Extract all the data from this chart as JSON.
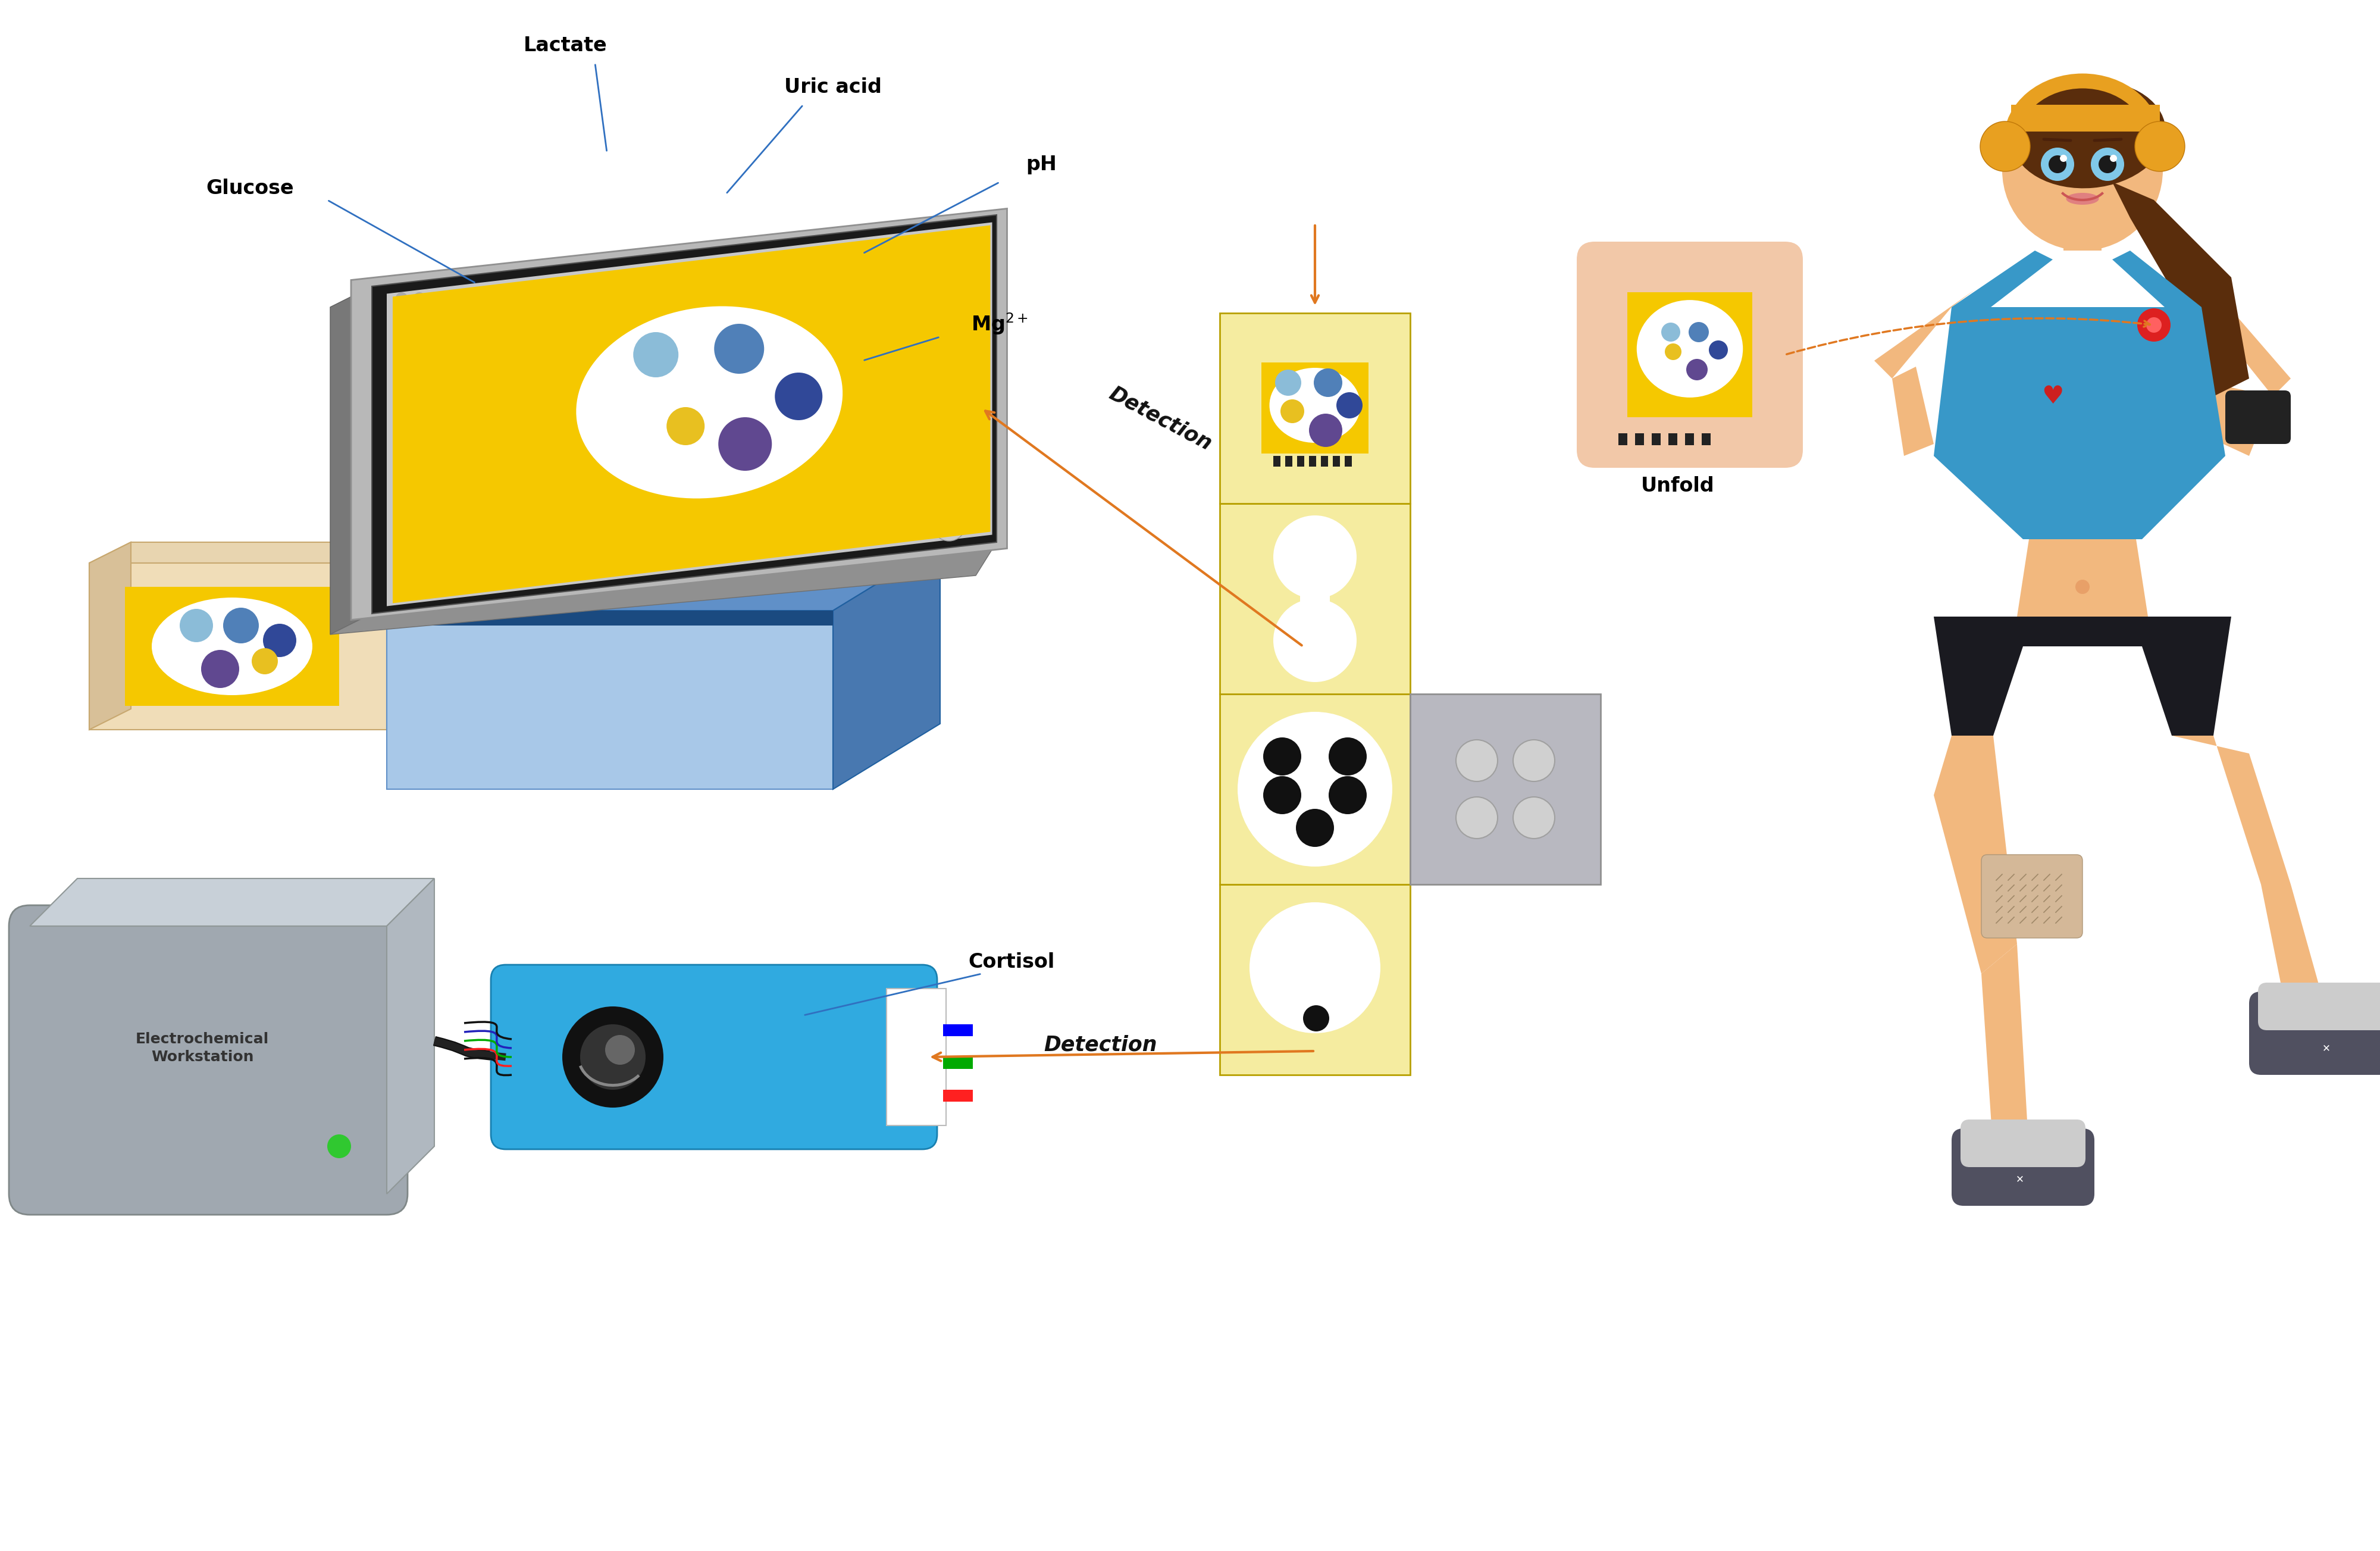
{
  "fig_width": 40.0,
  "fig_height": 26.06,
  "bg_color": "#ffffff",
  "labels": {
    "glucose": "Glucose",
    "lactate": "Lactate",
    "uric_acid": "Uric acid",
    "ph": "pH",
    "mg2plus": "Mg$^{2+}$",
    "cortisol": "Cortisol",
    "unfold": "Unfold",
    "detection1": "Detection",
    "detection2": "Detection",
    "electrochemical": "Electrochemical\nWorkstation"
  },
  "annotation_fontsize": 22,
  "label_fontsize": 22,
  "arrow_color": "#E07820",
  "line_color": "#3070C0",
  "dot_colors": {
    "glucose": "#8BBCD8",
    "lactate": "#5080B8",
    "uric_acid": "#304898",
    "ph": "#604890",
    "yellow": "#E8C020",
    "white": "#FFFFFF"
  },
  "sensor_yellow": "#F5C800",
  "phone_silver": "#A8A8A8",
  "phone_dark": "#1A1A1A",
  "phone_light_silver": "#D0D0D0",
  "box_blue": "#6090C8",
  "box_light_blue": "#A8C8E8",
  "box_dark_blue": "#1A4A80",
  "echem_gray": "#A0A8B0",
  "echem_light": "#C8D0D8",
  "paper_yellow": "#F0D840",
  "paper_light_yellow": "#F5ECA0",
  "paper_gray": "#B8B8C0",
  "skin_color": "#F2B87E",
  "hair_color": "#5A2D0C",
  "headband_color": "#E8A020",
  "top_blue": "#3898C8",
  "shorts_black": "#1A1A20"
}
